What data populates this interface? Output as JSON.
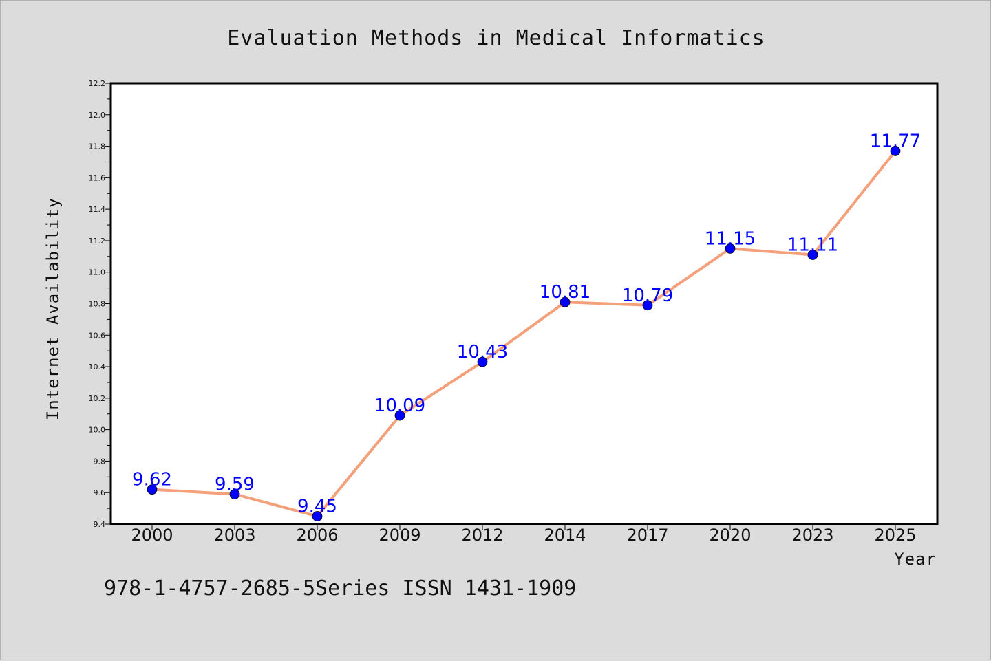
{
  "chart_data": {
    "type": "line",
    "title": "Evaluation Methods in Medical Informatics",
    "xlabel": "Year",
    "ylabel": "Internet Availability",
    "categories": [
      "2000",
      "2003",
      "2006",
      "2009",
      "2012",
      "2014",
      "2017",
      "2020",
      "2023",
      "2025"
    ],
    "series": [
      {
        "values": [
          9.62,
          9.59,
          9.45,
          10.09,
          10.43,
          10.81,
          10.79,
          11.15,
          11.11,
          11.77
        ],
        "data_labels": [
          "9.62",
          "9.59",
          "9.45",
          "10.09",
          "10.43",
          "10.81",
          "10.79",
          "11.15",
          "11.11",
          "11.77"
        ],
        "line_color": "#f4a07a",
        "marker_color": "#0000ff"
      }
    ],
    "ylim": [
      9.4,
      12.2
    ],
    "y_ticks": [
      "9.4",
      "9.6",
      "9.8",
      "10.0",
      "10.2",
      "10.4",
      "10.6",
      "10.8",
      "11.0",
      "11.2",
      "11.4",
      "11.6",
      "11.8",
      "12.0",
      "12.2"
    ],
    "grid": false,
    "legend": "none",
    "label_color": "#0000ff"
  },
  "footer": {
    "text": "978-1-4757-2685-5Series ISSN 1431-1909"
  },
  "colors": {
    "background": "#dcdcdc",
    "plot_area": "#ffffff"
  }
}
